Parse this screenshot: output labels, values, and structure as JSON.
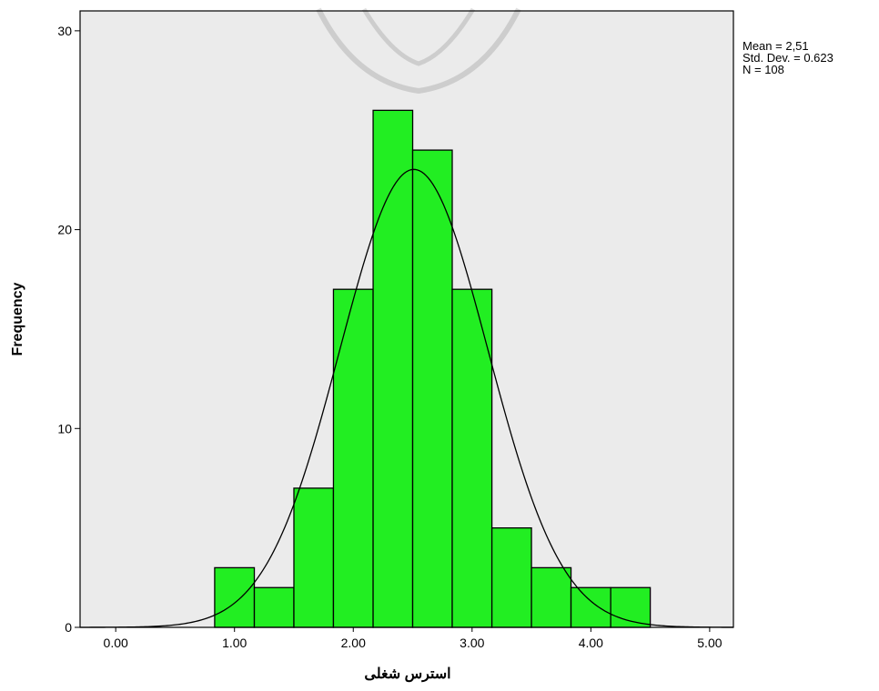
{
  "chart_data": {
    "type": "bar",
    "subtype": "histogram",
    "xlabel": "استرس شغلی",
    "ylabel": "Frequency",
    "xlim": [
      -0.3,
      5.2
    ],
    "ylim": [
      0,
      31
    ],
    "x_ticks": [
      0,
      1,
      2,
      3,
      4,
      5
    ],
    "x_tick_labels": [
      "0.00",
      "1.00",
      "2.00",
      "3.00",
      "4.00",
      "5.00"
    ],
    "y_ticks": [
      0,
      10,
      20,
      30
    ],
    "y_tick_labels": [
      "0",
      "10",
      "20",
      "30"
    ],
    "bin_width": 0.333,
    "bins": [
      {
        "x0": 0.833,
        "x1": 1.167,
        "count": 3
      },
      {
        "x0": 1.167,
        "x1": 1.5,
        "count": 2
      },
      {
        "x0": 1.5,
        "x1": 1.833,
        "count": 7
      },
      {
        "x0": 1.833,
        "x1": 2.167,
        "count": 17
      },
      {
        "x0": 2.167,
        "x1": 2.5,
        "count": 26
      },
      {
        "x0": 2.5,
        "x1": 2.833,
        "count": 24
      },
      {
        "x0": 2.833,
        "x1": 3.167,
        "count": 17
      },
      {
        "x0": 3.167,
        "x1": 3.5,
        "count": 5
      },
      {
        "x0": 3.5,
        "x1": 3.833,
        "count": 3
      },
      {
        "x0": 3.833,
        "x1": 4.167,
        "count": 2
      },
      {
        "x0": 4.167,
        "x1": 4.5,
        "count": 2
      }
    ],
    "normal_curve": {
      "mean": 2.51,
      "sd": 0.623,
      "n": 108
    },
    "stats_text": [
      "Mean = 2,51",
      "Std. Dev. = 0.623",
      "N = 108"
    ],
    "bar_color": "#22ee22",
    "bar_edge_color": "#000000",
    "plot_background": "#ebebeb",
    "grid": false,
    "legend": "none"
  }
}
